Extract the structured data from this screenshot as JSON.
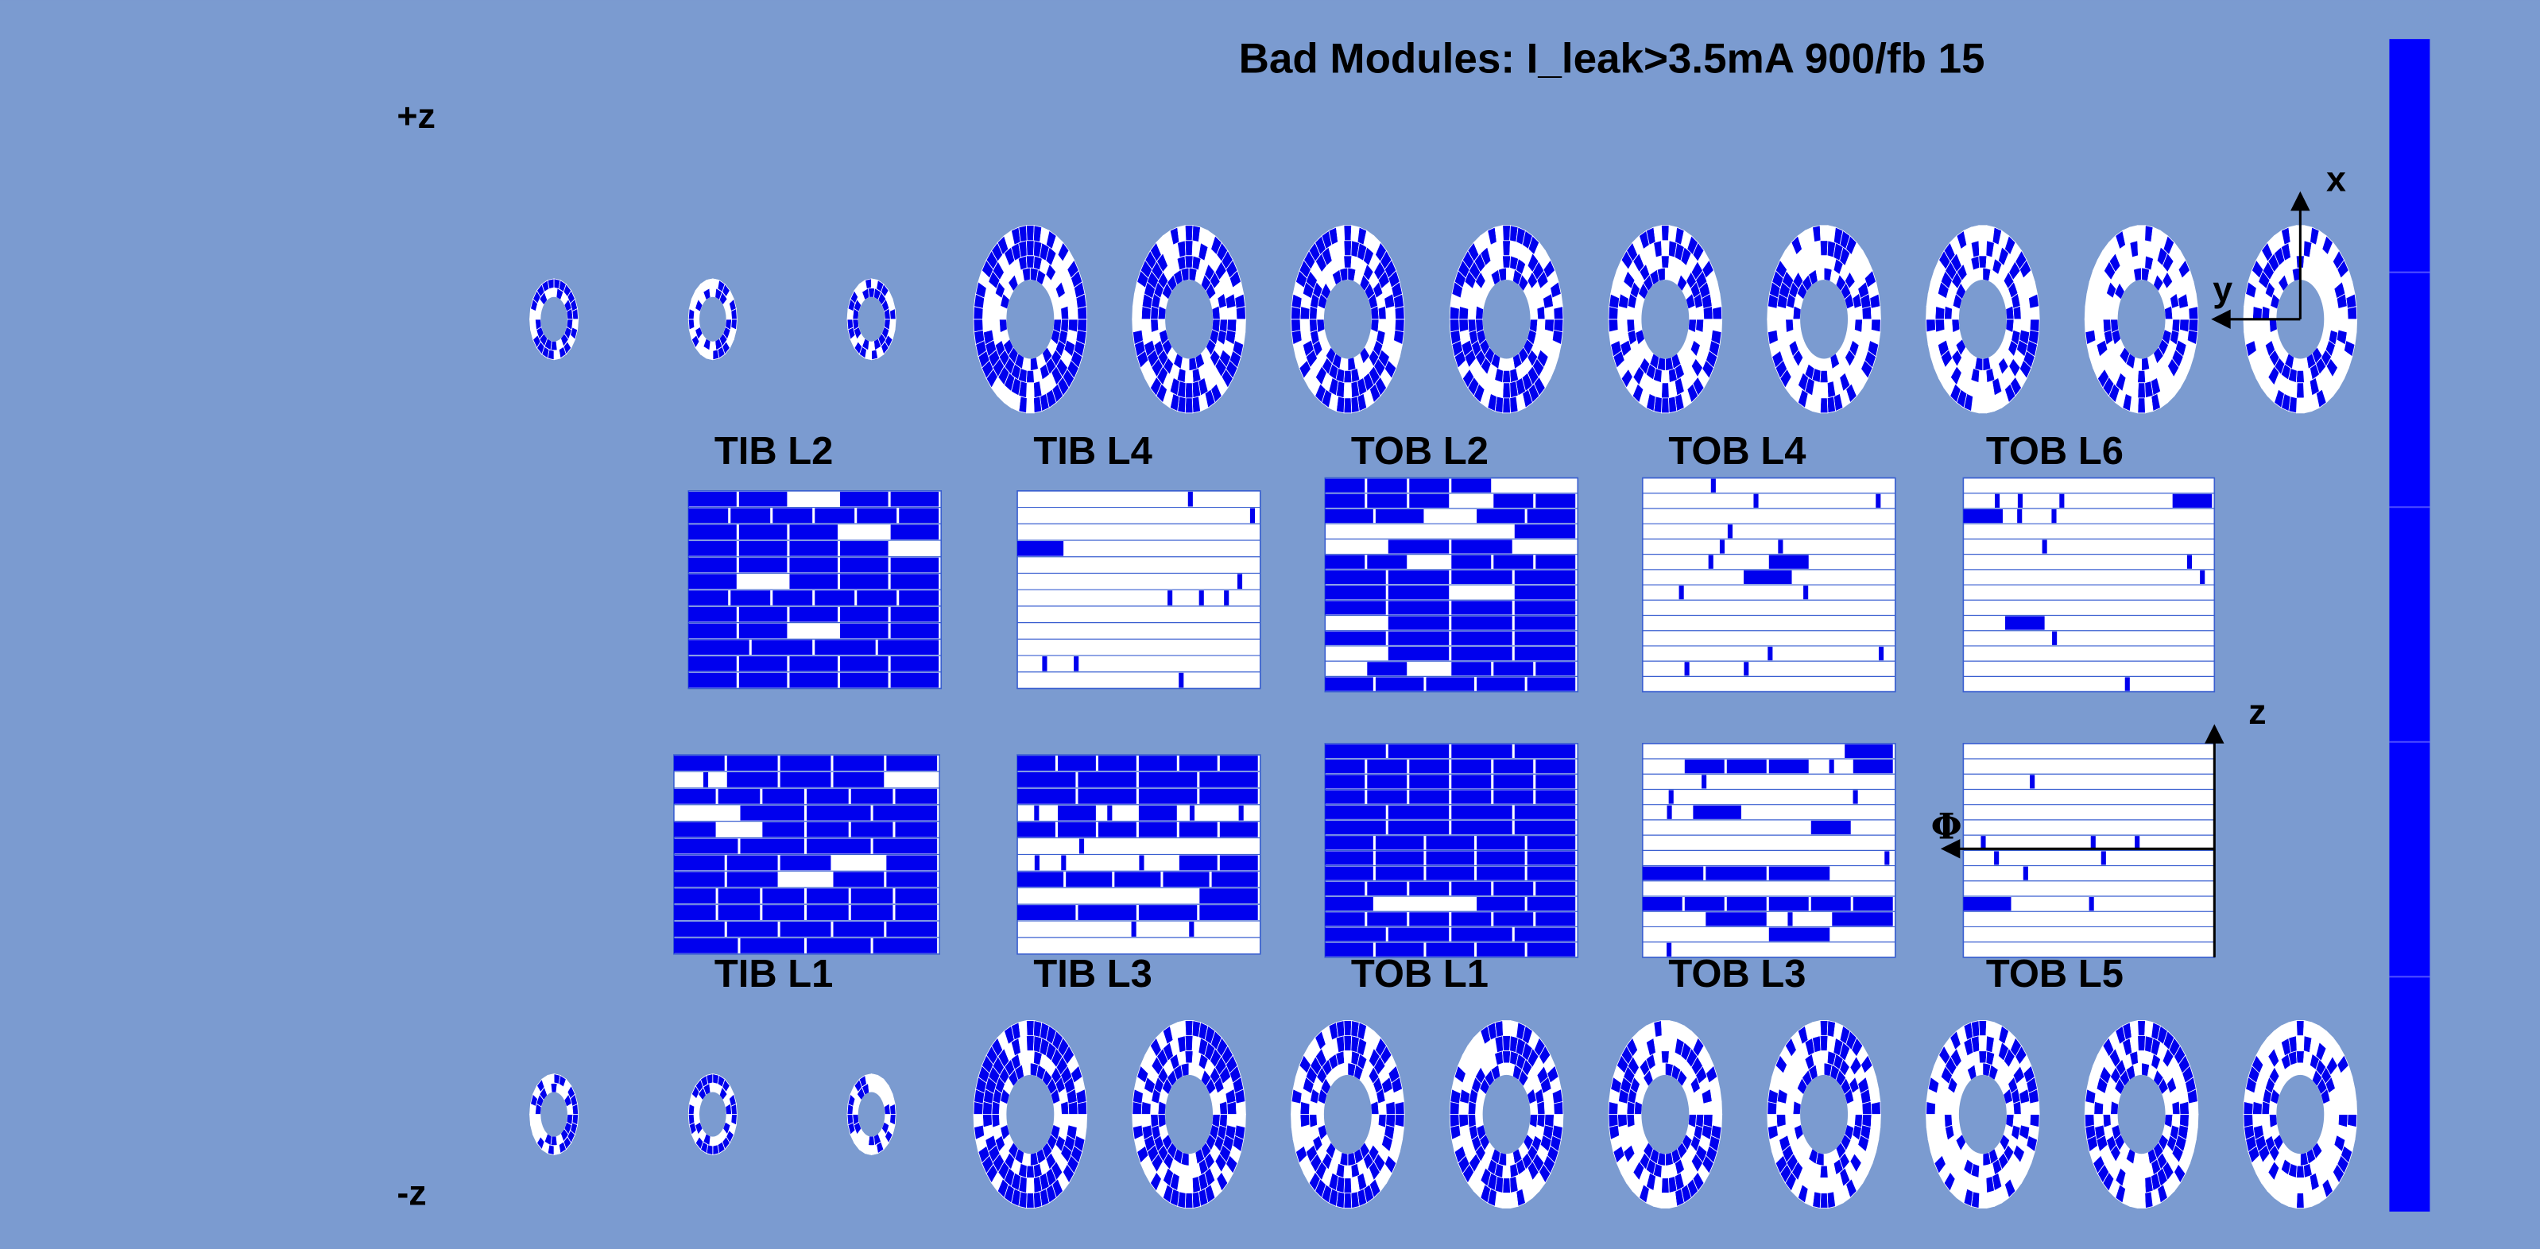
{
  "title": "Bad Modules: I_leak>3.5mA 900/fb 15",
  "z_labels": {
    "plus": "+z",
    "minus": "-z"
  },
  "layers": {
    "top": [
      "TIB L2",
      "TIB L4",
      "TOB L2",
      "TOB L4",
      "TOB L6"
    ],
    "bottom": [
      "TIB L1",
      "TIB L3",
      "TOB L1",
      "TOB L3",
      "TOB L5"
    ]
  },
  "axes": {
    "x": "x",
    "y": "y",
    "z": "z",
    "phi": "Φ"
  }
}
